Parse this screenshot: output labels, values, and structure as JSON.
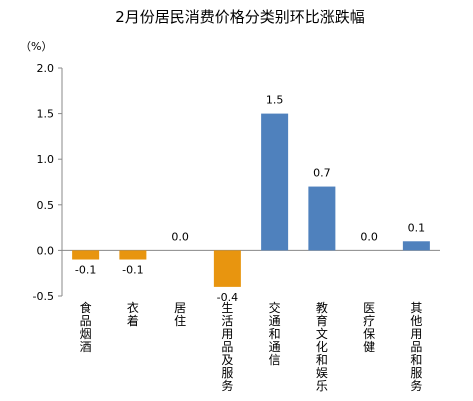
{
  "chart_data": {
    "type": "bar",
    "title": "2月份居民消费价格分类别环比涨跌幅",
    "unit_label": "（%）",
    "categories": [
      "食品烟酒",
      "衣着",
      "居住",
      "生活用品及服务",
      "交通和通信",
      "教育文化和娱乐",
      "医疗保健",
      "其他用品和服务"
    ],
    "values": [
      -0.1,
      -0.1,
      0.0,
      -0.4,
      1.5,
      0.7,
      0.0,
      0.1
    ],
    "data_labels": [
      "-0.1",
      "-0.1",
      "0.0",
      "-0.4",
      "1.5",
      "0.7",
      "0.0",
      "0.1"
    ],
    "ylim": [
      -0.5,
      2.0
    ],
    "yticks": [
      "-0.5",
      "0.0",
      "0.5",
      "1.0",
      "1.5",
      "2.0"
    ],
    "grid": false,
    "colors": {
      "positive": "#4f81bd",
      "negative": "#e8950f",
      "axis": "#888888"
    }
  }
}
